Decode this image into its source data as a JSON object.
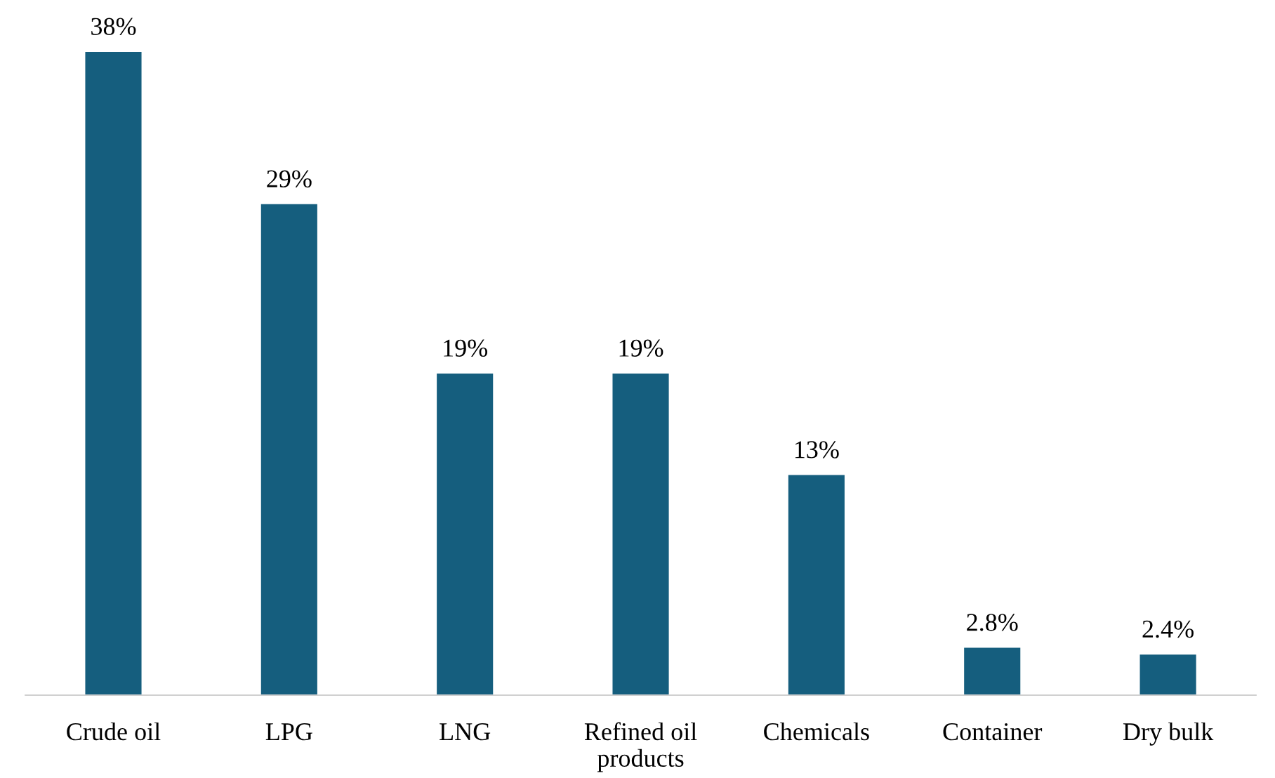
{
  "chart_data": {
    "type": "bar",
    "categories": [
      "Crude oil",
      "LPG",
      "LNG",
      "Refined oil\nproducts",
      "Chemicals",
      "Container",
      "Dry bulk"
    ],
    "values": [
      38,
      29,
      19,
      19,
      13,
      2.8,
      2.4
    ],
    "value_labels": [
      "38%",
      "29%",
      "19%",
      "19%",
      "13%",
      "2.8%",
      "2.4%"
    ],
    "color": "#155e7e",
    "grid": false,
    "legend": false
  }
}
